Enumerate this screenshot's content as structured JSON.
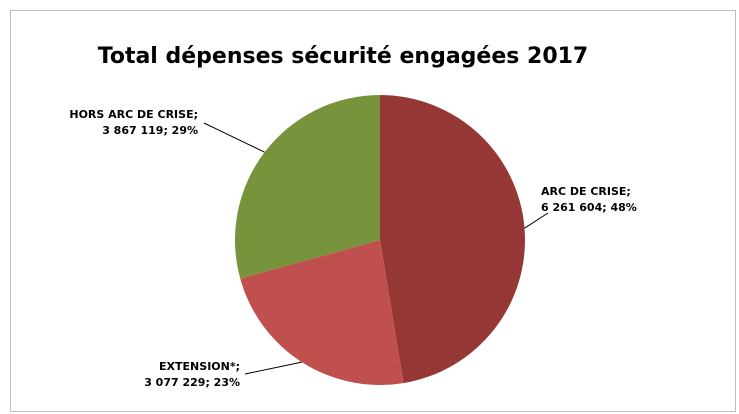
{
  "chart_data": {
    "type": "pie",
    "title": "Total dépenses sécurité engagées 2017",
    "slices": [
      {
        "label": "ARC DE CRISE;",
        "value": 6261604,
        "value_text": "6 261 604",
        "percent_text": "48%",
        "color": "#953735"
      },
      {
        "label": "EXTENSION*;",
        "value": 3077229,
        "value_text": "3 077 229",
        "percent_text": "23%",
        "color": "#c0504d"
      },
      {
        "label": "HORS ARC DE CRISE;",
        "value": 3867119,
        "value_text": "3 867 119",
        "percent_text": "29%",
        "color": "#77933c"
      }
    ],
    "legend": "none",
    "grid": false
  }
}
